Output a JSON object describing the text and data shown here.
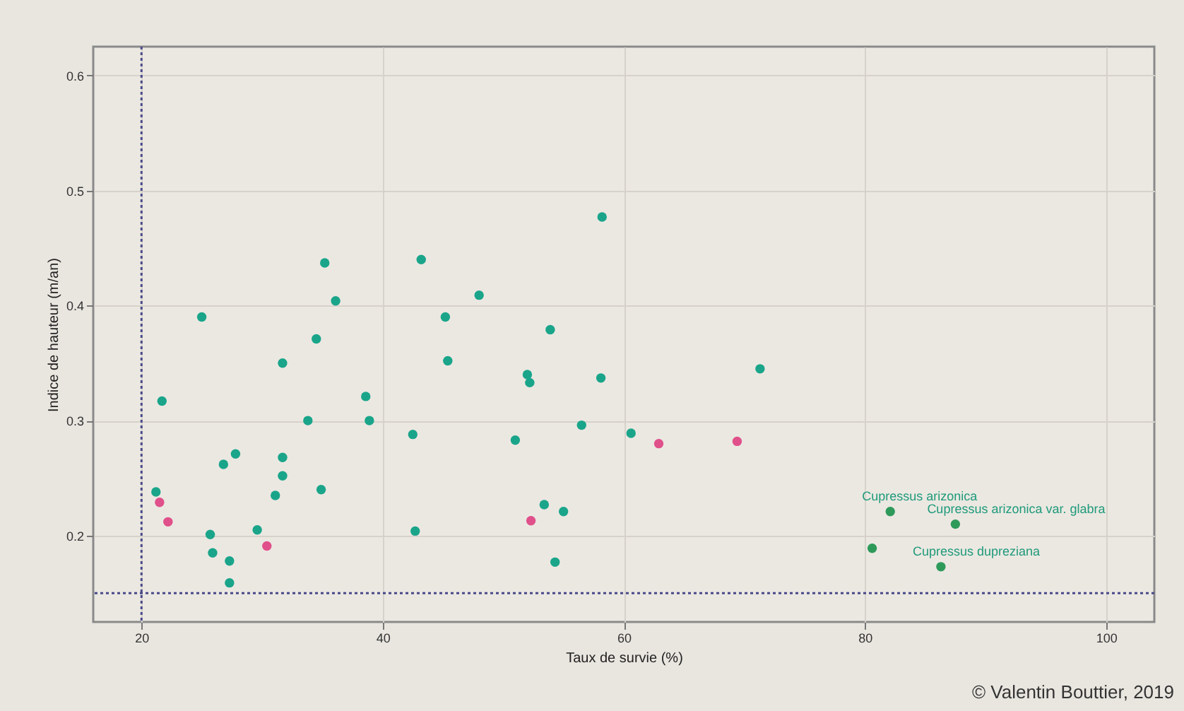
{
  "chart_data": {
    "type": "scatter",
    "xlabel": "Taux de survie (%)",
    "ylabel": "Indice de hauteur (m/an)",
    "xlim": [
      16,
      104
    ],
    "xticks": [
      20,
      40,
      60,
      80,
      100
    ],
    "ylim": [
      0.125,
      0.625
    ],
    "yticks": [
      0.2,
      0.3,
      0.4,
      0.5,
      0.6
    ],
    "grid": true,
    "legend": false,
    "marker": "circle",
    "series": [
      {
        "color": "#1aa58a",
        "x": [
          58.2,
          35.2,
          43.2,
          36.1,
          48.0,
          25.0,
          45.2,
          53.9,
          34.5,
          31.7,
          45.4,
          52.0,
          52.2,
          58.1,
          71.3,
          21.7,
          38.6,
          33.8,
          38.9,
          42.5,
          51.0,
          56.5,
          60.6,
          27.8,
          26.8,
          31.7,
          31.7,
          34.9,
          31.1,
          53.4,
          55.0,
          42.7,
          29.6,
          54.3,
          25.9,
          27.3,
          27.3,
          21.2,
          25.7
        ],
        "values": [
          0.477,
          0.437,
          0.44,
          0.404,
          0.409,
          0.39,
          0.39,
          0.379,
          0.371,
          0.35,
          0.352,
          0.34,
          0.333,
          0.337,
          0.345,
          0.317,
          0.321,
          0.3,
          0.3,
          0.288,
          0.283,
          0.296,
          0.289,
          0.271,
          0.262,
          0.268,
          0.252,
          0.24,
          0.235,
          0.227,
          0.221,
          0.204,
          0.205,
          0.177,
          0.185,
          0.178,
          0.159,
          0.238,
          0.201
        ]
      },
      {
        "color": "#2e9a5a",
        "x": [
          82.1,
          87.5,
          80.6,
          86.3
        ],
        "values": [
          0.221,
          0.21,
          0.189,
          0.173
        ]
      },
      {
        "color": "#e0508a",
        "x": [
          21.5,
          22.2,
          30.4,
          62.9,
          69.4,
          52.3
        ],
        "values": [
          0.229,
          0.212,
          0.191,
          0.28,
          0.282,
          0.213
        ]
      }
    ],
    "ref_lines": [
      {
        "axis": "x",
        "value": 20,
        "color": "#4a4a8a",
        "line_style": "dotted"
      },
      {
        "axis": "y",
        "value": 0.15,
        "color": "#4a4a8a",
        "line_style": "dotted"
      }
    ],
    "annotations": [
      {
        "text": "Cupressus arizonica",
        "x": 82.1,
        "y": 0.221
      },
      {
        "text": "Cupressus arizonica var. glabra",
        "x": 87.5,
        "y": 0.21
      },
      {
        "text": "Cupressus dupreziana",
        "x": 86.3,
        "y": 0.173
      },
      "© Valentin Bouttier, 2019"
    ]
  }
}
